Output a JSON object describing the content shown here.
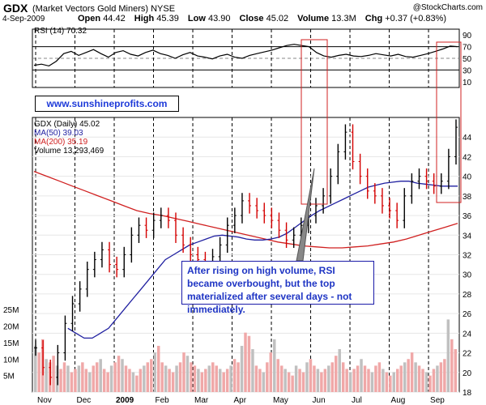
{
  "header": {
    "ticker": "GDX",
    "name": "(Market Vectors Gold Miners)",
    "exchange": "NYSE",
    "date": "4-Sep-2009",
    "open_label": "Open",
    "open": "44.42",
    "high_label": "High",
    "high": "45.39",
    "low_label": "Low",
    "low": "43.90",
    "close_label": "Close",
    "close": "45.02",
    "volume_label": "Volume",
    "volume": "13.3M",
    "chg_label": "Chg",
    "chg": "+0.37 (+0.83%)",
    "watermark": "@StockCharts.com"
  },
  "url_box": "www.sunshineprofits.com",
  "annotation": "After rising on high volume, RSI became overbought, but the top materialized after several days - not immediately.",
  "colors": {
    "up": "#000000",
    "down": "#d40000",
    "ma50": "#1f1fa0",
    "ma200": "#d02020",
    "rsi": "#000000",
    "highlight": "#d02020",
    "volume": "#f0a8a8",
    "volume_up": "#c0c0c0"
  },
  "chart_data": [
    {
      "type": "line",
      "panel": "rsi",
      "label": "RSI (14) 70.32",
      "ylim": [
        0,
        100
      ],
      "yticks": [
        10,
        30,
        50,
        70,
        90
      ],
      "series": [
        {
          "name": "RSI (14)",
          "values": [
            38,
            40,
            37,
            45,
            58,
            62,
            55,
            60,
            65,
            58,
            52,
            60,
            63,
            57,
            54,
            60,
            64,
            58,
            55,
            50,
            56,
            60,
            54,
            52,
            49,
            54,
            57,
            52,
            50,
            55,
            58,
            61,
            64,
            68,
            72,
            74,
            72,
            70,
            60,
            54,
            52,
            55,
            57,
            54,
            53,
            55,
            58,
            56,
            54,
            57,
            53,
            52,
            55,
            58,
            62,
            66,
            71,
            70
          ]
        }
      ]
    },
    {
      "type": "line",
      "panel": "price",
      "legend": [
        "GDX (Daily) 45.02",
        "MA(50) 39.03",
        "MA(200) 35.19",
        "Volume 13,293,469"
      ],
      "x_labels": [
        "Nov",
        "Dec",
        "2009",
        "Feb",
        "Mar",
        "Apr",
        "May",
        "Jun",
        "Jul",
        "Aug",
        "Sep"
      ],
      "ylim": [
        18,
        46
      ],
      "yticks": [
        18,
        20,
        22,
        24,
        26,
        28,
        30,
        32,
        34,
        36,
        38,
        40,
        42,
        44
      ],
      "series": [
        {
          "name": "GDX (Daily)",
          "values": [
            22.5,
            20.5,
            19.5,
            22,
            25,
            27,
            28.5,
            30.5,
            31.5,
            32.5,
            31,
            30.5,
            32,
            34,
            35,
            34.5,
            35.5,
            36,
            35.5,
            34,
            33,
            32,
            31.5,
            31,
            31.8,
            33,
            35,
            36,
            37.5,
            37,
            36.5,
            36,
            35.5,
            34.5,
            33.5,
            34,
            35,
            36,
            37,
            38,
            40,
            42.5,
            44.5,
            41.5,
            40,
            38.5,
            38,
            37,
            36.5,
            35.5,
            38,
            39.5,
            40,
            39.5,
            39,
            39.5,
            42,
            45
          ]
        },
        {
          "name": "MA(50)",
          "values": [
            24.5,
            24,
            23.5,
            23.5,
            24,
            24.5,
            25.5,
            26.5,
            27.5,
            28.5,
            29.5,
            30.5,
            31.5,
            32,
            32.5,
            33,
            33.3,
            33.6,
            33.9,
            34,
            33.9,
            33.8,
            33.6,
            33.5,
            33.5,
            33.6,
            33.8,
            34.2,
            34.8,
            35.4,
            36,
            36.5,
            36.9,
            37.3,
            37.7,
            38.1,
            38.5,
            38.9,
            39.1,
            39.3,
            39.4,
            39.5,
            39.5,
            39.3,
            39.2,
            39.1,
            39.0,
            39.0,
            39.0
          ]
        },
        {
          "name": "MA(200)",
          "values": [
            40.5,
            40,
            39.5,
            39,
            38.5,
            38,
            37.5,
            37,
            36.5,
            36.2,
            36,
            35.7,
            35.4,
            35.1,
            34.8,
            34.5,
            34.2,
            33.9,
            33.6,
            33.3,
            33.1,
            32.9,
            32.8,
            32.7,
            32.7,
            32.8,
            32.9,
            33.1,
            33.3,
            33.6,
            34,
            34.4,
            34.8,
            35.2
          ]
        }
      ]
    },
    {
      "type": "bar",
      "panel": "volume",
      "yticks_labels": [
        "5M",
        "10M",
        "15M",
        "20M",
        "25M"
      ],
      "ylim": [
        0,
        27
      ],
      "series": [
        {
          "name": "Volume",
          "values": [
            14,
            12,
            16,
            10,
            9,
            11,
            8,
            7,
            9,
            8,
            6,
            7,
            8,
            9,
            7,
            6,
            8,
            9,
            10,
            7,
            6,
            8,
            9,
            11,
            10,
            8,
            7,
            6,
            5,
            7,
            8,
            9,
            10,
            12,
            14,
            9,
            8,
            7,
            6,
            8,
            9,
            12,
            11,
            9,
            8,
            7,
            6,
            7,
            8,
            9,
            8,
            7,
            6,
            7,
            8,
            10,
            9,
            14,
            18,
            17,
            13,
            8,
            7,
            6,
            9,
            12,
            16,
            10,
            8,
            7,
            6,
            5,
            8,
            7,
            6,
            9,
            10,
            8,
            7,
            6,
            7,
            8,
            9,
            11,
            13,
            9,
            7,
            6,
            7,
            8,
            10,
            8,
            7,
            6,
            8,
            9,
            7,
            6,
            5,
            6,
            7,
            8,
            9,
            10,
            12,
            9,
            8,
            7,
            6,
            5,
            7,
            8,
            9,
            10,
            22,
            16,
            13
          ]
        }
      ]
    }
  ]
}
